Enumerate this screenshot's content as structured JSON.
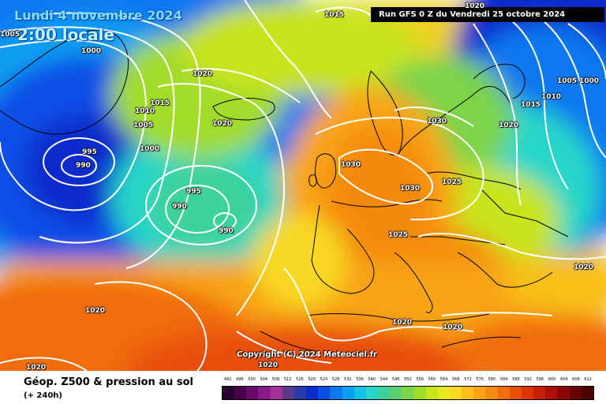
{
  "header": {
    "date": "Lundi 4 novembre 2024",
    "time": "2:00 locale",
    "run": "Run GFS 0 Z du Vendredi 25 octobre 2024"
  },
  "copyright": "Copyright (C) 2024 Meteociel.fr",
  "footer": {
    "product": "Géop. Z500 & pression au sol",
    "lead": "(+ 240h)"
  },
  "legend": {
    "values": [
      "492",
      "496",
      "500",
      "504",
      "508",
      "512",
      "516",
      "520",
      "524",
      "528",
      "532",
      "536",
      "540",
      "544",
      "548",
      "552",
      "556",
      "560",
      "564",
      "568",
      "572",
      "576",
      "580",
      "584",
      "588",
      "592",
      "596",
      "600",
      "604",
      "608",
      "612"
    ],
    "colors": [
      "#2a0030",
      "#480048",
      "#6a0a6a",
      "#8a1a8a",
      "#a8309a",
      "#5a3a8a",
      "#2a3aaa",
      "#0a2acc",
      "#0a50e6",
      "#0a78f0",
      "#0aa0f0",
      "#14c2e6",
      "#28d6c8",
      "#3cd29a",
      "#5ad070",
      "#7cd448",
      "#a2dc2a",
      "#c8e41a",
      "#e8e820",
      "#f8d820",
      "#f8c018",
      "#f8a414",
      "#f48a10",
      "#f06c0c",
      "#e85008",
      "#dc3606",
      "#c82006",
      "#b01004",
      "#8c0604",
      "#6a0202",
      "#4a0000"
    ]
  },
  "pressure_labels": [
    {
      "id": "1015-top",
      "text": "1015"
    },
    {
      "id": "1005-left",
      "text": "1005"
    },
    {
      "id": "1000-left",
      "text": "1000"
    },
    {
      "id": "1020-iceland",
      "text": "1020"
    },
    {
      "id": "1015-green",
      "text": "1015"
    },
    {
      "id": "1010-green",
      "text": "1010"
    },
    {
      "id": "1005-green",
      "text": "1005"
    },
    {
      "id": "1020-mid",
      "text": "1020"
    },
    {
      "id": "995-low",
      "text": "995"
    },
    {
      "id": "990-low",
      "text": "990"
    },
    {
      "id": "1000-mid",
      "text": "1000"
    },
    {
      "id": "995-mid",
      "text": "995"
    },
    {
      "id": "990-mid",
      "text": "990"
    },
    {
      "id": "990-mid2",
      "text": "990"
    },
    {
      "id": "1030-high",
      "text": "1030"
    },
    {
      "id": "1030-norway",
      "text": "1030"
    },
    {
      "id": "1030-east",
      "text": "1030"
    },
    {
      "id": "1025-baltic",
      "text": "1025"
    },
    {
      "id": "1025-central",
      "text": "1025"
    },
    {
      "id": "1020-russia",
      "text": "1020"
    },
    {
      "id": "1015-russia",
      "text": "1015"
    },
    {
      "id": "1010-russia",
      "text": "1010"
    },
    {
      "id": "1005-russia",
      "text": "1005"
    },
    {
      "id": "1000-russia",
      "text": "1000"
    },
    {
      "id": "1020-top-right",
      "text": "1020"
    },
    {
      "id": "1020-east",
      "text": "1020"
    },
    {
      "id": "1020-atlantic",
      "text": "1020"
    },
    {
      "id": "1020-med1",
      "text": "1020"
    },
    {
      "id": "1020-med2",
      "text": "1020"
    },
    {
      "id": "1020-south",
      "text": "1020"
    },
    {
      "id": "1020-bottom-left",
      "text": "1020"
    }
  ]
}
